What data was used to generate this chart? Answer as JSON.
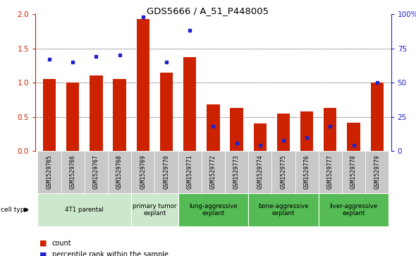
{
  "title": "GDS5666 / A_51_P448005",
  "samples": [
    "GSM1529765",
    "GSM1529766",
    "GSM1529767",
    "GSM1529768",
    "GSM1529769",
    "GSM1529770",
    "GSM1529771",
    "GSM1529772",
    "GSM1529773",
    "GSM1529774",
    "GSM1529775",
    "GSM1529776",
    "GSM1529777",
    "GSM1529778",
    "GSM1529779"
  ],
  "counts": [
    1.05,
    1.0,
    1.1,
    1.05,
    1.93,
    1.14,
    1.37,
    0.68,
    0.63,
    0.4,
    0.55,
    0.58,
    0.63,
    0.41,
    1.0
  ],
  "percentiles_pct": [
    67,
    65,
    69,
    70,
    98,
    65,
    88,
    18,
    6,
    4,
    8,
    10,
    18,
    4,
    50
  ],
  "groups": [
    {
      "label": "4T1 parental",
      "indices": [
        0,
        1,
        2,
        3
      ],
      "color": "#cce8cc"
    },
    {
      "label": "primary tumor\nexplant",
      "indices": [
        4,
        5
      ],
      "color": "#cce8cc"
    },
    {
      "label": "lung-aggressive\nexplant",
      "indices": [
        6,
        7,
        8
      ],
      "color": "#55bb55"
    },
    {
      "label": "bone-aggressive\nexplant",
      "indices": [
        9,
        10,
        11
      ],
      "color": "#55bb55"
    },
    {
      "label": "liver-aggressive\nexplant",
      "indices": [
        12,
        13,
        14
      ],
      "color": "#55bb55"
    }
  ],
  "bar_color": "#cc2200",
  "dot_color": "#2222cc",
  "ylim_left": [
    0,
    2.0
  ],
  "ylim_right": [
    0,
    100
  ],
  "yticks_left": [
    0,
    0.5,
    1.0,
    1.5,
    2.0
  ],
  "yticks_right": [
    0,
    25,
    50,
    75,
    100
  ],
  "left_tick_color": "#cc2200",
  "right_tick_color": "#2222cc",
  "bg_color": "#ffffff",
  "sample_bg": "#c8c8c8",
  "legend_count_label": "count",
  "legend_percentile_label": "percentile rank within the sample",
  "cell_type_label": "cell type"
}
